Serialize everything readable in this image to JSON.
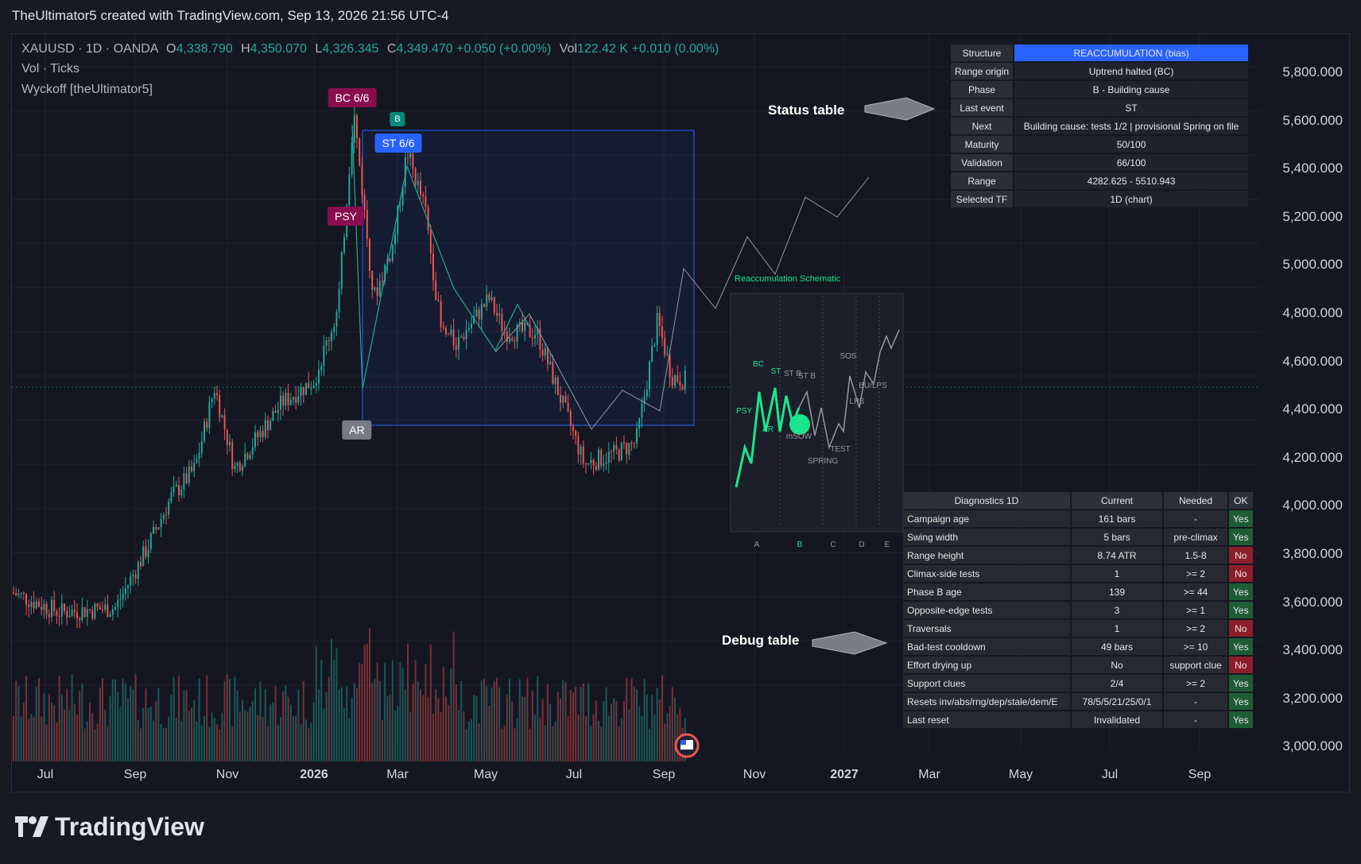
{
  "header": {
    "text": "TheUltimator5 created with TradingView.com, Sep 13, 2026 21:56 UTC-4"
  },
  "legend": {
    "symbol": "XAUUSD · 1D · OANDA",
    "o_label": "O",
    "o": "4,338.790",
    "h_label": "H",
    "h": "4,350.070",
    "l_label": "L",
    "l": "4,326.345",
    "c_label": "C",
    "c": "4,349.470",
    "change": "+0.050 (+0.00%)",
    "vol_label": "Vol",
    "vol": "122.42 K",
    "vol_change": "+0.010 (0.00%)",
    "volume_indicator": "Vol · Ticks",
    "wyckoff_indicator": "Wyckoff [theUltimator5]"
  },
  "y_axis": [
    "5,800.000",
    "5,600.000",
    "5,400.000",
    "5,200.000",
    "5,000.000",
    "4,800.000",
    "4,600.000",
    "4,400.000",
    "4,200.000",
    "4,000.000",
    "3,800.000",
    "3,600.000",
    "3,400.000",
    "3,200.000",
    "3,000.000"
  ],
  "x_axis": [
    {
      "label": "Jul",
      "bold": false
    },
    {
      "label": "Sep",
      "bold": false
    },
    {
      "label": "Nov",
      "bold": false
    },
    {
      "label": "2026",
      "bold": true
    },
    {
      "label": "Mar",
      "bold": false
    },
    {
      "label": "May",
      "bold": false
    },
    {
      "label": "Jul",
      "bold": false
    },
    {
      "label": "Sep",
      "bold": false
    },
    {
      "label": "Nov",
      "bold": false
    },
    {
      "label": "2027",
      "bold": true
    },
    {
      "label": "Mar",
      "bold": false
    },
    {
      "label": "May",
      "bold": false
    },
    {
      "label": "Jul",
      "bold": false
    },
    {
      "label": "Sep",
      "bold": false
    }
  ],
  "chart_labels": {
    "bc": "BC 6/6",
    "b": "B",
    "st": "ST 6/6",
    "psy": "PSY",
    "ar": "AR",
    "colors": {
      "bc": "#880e4f",
      "b": "#00897b",
      "st": "#2962ff",
      "psy": "#880e4f",
      "ar": "#787b86"
    }
  },
  "annotations": {
    "status": "Status table",
    "debug": "Debug table"
  },
  "status_table": [
    {
      "key": "Structure",
      "value": "REACCUMULATION (bias)"
    },
    {
      "key": "Range origin",
      "value": "Uptrend halted (BC)"
    },
    {
      "key": "Phase",
      "value": "B - Building cause"
    },
    {
      "key": "Last event",
      "value": "ST"
    },
    {
      "key": "Next",
      "value": "Building cause: tests 1/2   | provisional Spring on file"
    },
    {
      "key": "Maturity",
      "value": "50/100"
    },
    {
      "key": "Validation",
      "value": "66/100"
    },
    {
      "key": "Range",
      "value": "4282.625 - 5510.943"
    },
    {
      "key": "Selected TF",
      "value": "1D (chart)"
    }
  ],
  "schematic": {
    "title": "Reaccumulation Schematic",
    "labels": [
      "PSY",
      "BC",
      "AR",
      "ST",
      "ST B",
      "ST B",
      "mSOW",
      "SPRING",
      "TEST",
      "LPS",
      "SOS",
      "BU/LPS"
    ],
    "phases": [
      "A",
      "B",
      "C",
      "D",
      "E"
    ]
  },
  "diagnostics": {
    "headers": [
      "Diagnostics 1D",
      "Current",
      "Needed",
      "OK"
    ],
    "rows": [
      [
        "Campaign age",
        "161 bars",
        "-",
        "Yes"
      ],
      [
        "Swing width",
        "5 bars",
        "pre-climax",
        "Yes"
      ],
      [
        "Range height",
        "8.74 ATR",
        "1.5-8",
        "No"
      ],
      [
        "Climax-side tests",
        "1",
        ">= 2",
        "No"
      ],
      [
        "Phase B age",
        "139",
        ">= 44",
        "Yes"
      ],
      [
        "Opposite-edge tests",
        "3",
        ">= 1",
        "Yes"
      ],
      [
        "Traversals",
        "1",
        ">= 2",
        "No"
      ],
      [
        "Bad-test cooldown",
        "49 bars",
        ">= 10",
        "Yes"
      ],
      [
        "Effort drying up",
        "No",
        "support clue",
        "No"
      ],
      [
        "Support clues",
        "2/4",
        ">= 2",
        "Yes"
      ],
      [
        "Resets inv/abs/rng/dep/stale/dem/E",
        "78/5/5/21/25/0/1",
        "-",
        "Yes"
      ],
      [
        "Last reset",
        "Invalidated",
        "-",
        "Yes"
      ]
    ]
  },
  "footer": {
    "brand": "TradingView"
  },
  "colors": {
    "up": "#26a69a",
    "down": "#ef5350",
    "accent": "#2962ff",
    "schematic": "#19e68a"
  }
}
